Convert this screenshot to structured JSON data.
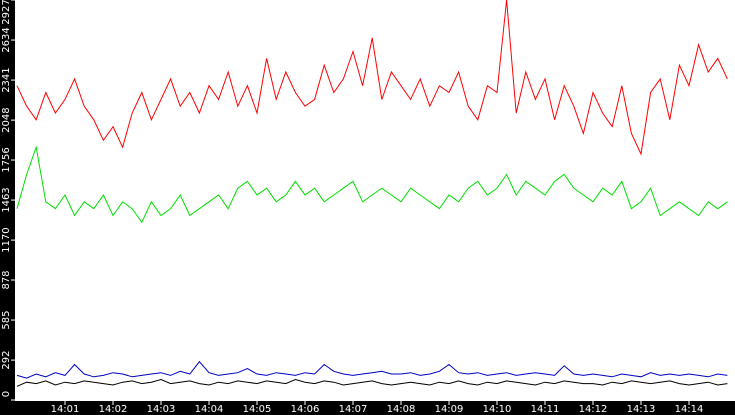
{
  "chart_data": {
    "type": "line",
    "categories": [
      null,
      null,
      null,
      null,
      null,
      "14:01",
      null,
      null,
      null,
      null,
      "14:02",
      null,
      null,
      null,
      null,
      "14:03",
      null,
      null,
      null,
      null,
      "14:04",
      null,
      null,
      null,
      null,
      "14:05",
      null,
      null,
      null,
      null,
      "14:06",
      null,
      null,
      null,
      null,
      "14:07",
      null,
      null,
      null,
      null,
      "14:08",
      null,
      null,
      null,
      null,
      "14:09",
      null,
      null,
      null,
      null,
      "14:10",
      null,
      null,
      null,
      null,
      "14:11",
      null,
      null,
      null,
      null,
      "14:12",
      null,
      null,
      null,
      null,
      "14:13",
      null,
      null,
      null,
      null,
      "14:14",
      null,
      null,
      null,
      null
    ],
    "series": [
      {
        "color": "#ff0000",
        "values": [
          2300,
          2150,
          2050,
          2250,
          2100,
          2200,
          2350,
          2150,
          2050,
          1900,
          2000,
          1850,
          2100,
          2250,
          2050,
          2200,
          2350,
          2150,
          2250,
          2100,
          2300,
          2200,
          2400,
          2150,
          2300,
          2100,
          2500,
          2200,
          2400,
          2250,
          2150,
          2200,
          2450,
          2250,
          2350,
          2550,
          2300,
          2650,
          2200,
          2400,
          2300,
          2200,
          2350,
          2150,
          2300,
          2250,
          2400,
          2150,
          2050,
          2300,
          2250,
          2927,
          2100,
          2400,
          2200,
          2350,
          2050,
          2300,
          2150,
          1950,
          2250,
          2100,
          2000,
          2300,
          1950,
          1800,
          2250,
          2350,
          2050,
          2450,
          2300,
          2600,
          2400,
          2500,
          2350
        ]
      },
      {
        "color": "#00e000",
        "values": [
          1400,
          1650,
          1850,
          1450,
          1400,
          1500,
          1350,
          1450,
          1400,
          1500,
          1350,
          1450,
          1400,
          1300,
          1450,
          1350,
          1400,
          1500,
          1350,
          1400,
          1450,
          1500,
          1400,
          1550,
          1600,
          1500,
          1550,
          1450,
          1500,
          1600,
          1500,
          1550,
          1450,
          1500,
          1550,
          1600,
          1450,
          1500,
          1550,
          1500,
          1450,
          1550,
          1500,
          1450,
          1400,
          1500,
          1450,
          1550,
          1600,
          1500,
          1550,
          1650,
          1500,
          1600,
          1550,
          1500,
          1600,
          1650,
          1550,
          1500,
          1450,
          1550,
          1500,
          1600,
          1400,
          1450,
          1550,
          1350,
          1400,
          1450,
          1400,
          1350,
          1450,
          1400,
          1450
        ]
      },
      {
        "color": "#0000c0",
        "values": [
          180,
          160,
          190,
          170,
          200,
          180,
          260,
          190,
          170,
          180,
          200,
          190,
          170,
          180,
          190,
          200,
          180,
          210,
          190,
          280,
          200,
          180,
          190,
          200,
          230,
          190,
          180,
          200,
          190,
          180,
          200,
          190,
          260,
          210,
          190,
          180,
          190,
          200,
          210,
          190,
          190,
          200,
          180,
          190,
          210,
          260,
          200,
          190,
          200,
          180,
          190,
          200,
          180,
          190,
          200,
          190,
          180,
          250,
          190,
          180,
          190,
          180,
          170,
          190,
          180,
          170,
          200,
          180,
          190,
          180,
          190,
          180,
          170,
          190,
          180
        ]
      },
      {
        "color": "#000000",
        "values": [
          100,
          130,
          120,
          140,
          110,
          130,
          120,
          140,
          130,
          120,
          110,
          130,
          140,
          120,
          130,
          150,
          120,
          130,
          140,
          120,
          110,
          130,
          120,
          140,
          130,
          120,
          140,
          130,
          120,
          150,
          130,
          120,
          140,
          130,
          110,
          120,
          130,
          140,
          120,
          110,
          120,
          130,
          120,
          110,
          130,
          120,
          140,
          120,
          110,
          130,
          120,
          140,
          130,
          120,
          110,
          130,
          120,
          140,
          130,
          120,
          120,
          110,
          130,
          120,
          140,
          130,
          120,
          130,
          140,
          120,
          110,
          120,
          130,
          110,
          120
        ]
      }
    ],
    "ylim": [
      0,
      2927
    ],
    "yticks": [
      0,
      292,
      585,
      878,
      1170,
      1463,
      1756,
      2048,
      2341,
      2634,
      2927
    ],
    "grid": false
  }
}
